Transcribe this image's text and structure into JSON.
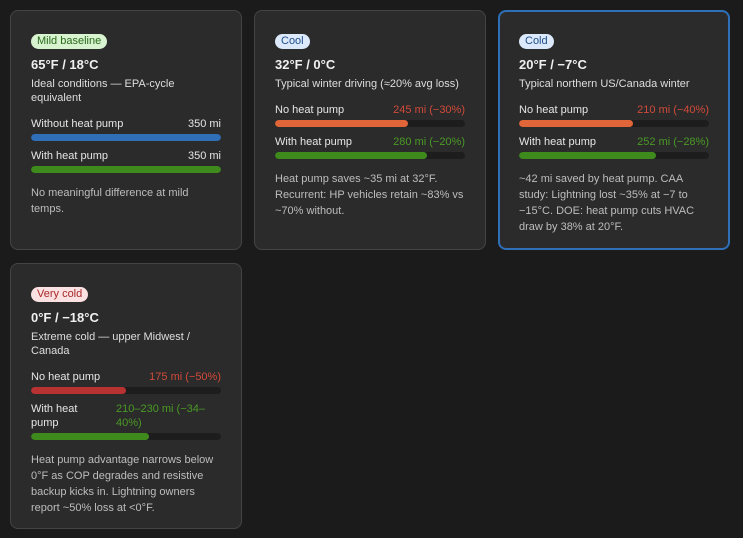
{
  "cards": [
    {
      "badge": "Mild baseline",
      "badge_bg": "#d7f3cf",
      "badge_fg": "#2a6a1b",
      "temp": "65°F / 18°C",
      "desc": "Ideal conditions — EPA-cycle equivalent",
      "rows": [
        {
          "label": "Without heat pump",
          "value": "350 mi",
          "fraction": 1.0,
          "bar_color": "#2f6fb8",
          "value_color": "#e6e6e6"
        },
        {
          "label": "With heat pump",
          "value": "350 mi",
          "fraction": 1.0,
          "bar_color": "#3f8a1c",
          "value_color": "#e6e6e6"
        }
      ],
      "note": "No meaningful difference at mild temps."
    },
    {
      "badge": "Cool",
      "badge_bg": "#dce9fb",
      "badge_fg": "#1f4f8a",
      "temp": "32°F / 0°C",
      "desc": "Typical winter driving (≈20% avg loss)",
      "rows": [
        {
          "label": "No heat pump",
          "value": "245 mi (−30%)",
          "fraction": 0.7,
          "bar_color": "#e0663a",
          "value_color": "#d14a3a"
        },
        {
          "label": "With heat pump",
          "value": "280 mi (−20%)",
          "fraction": 0.8,
          "bar_color": "#3f8a1c",
          "value_color": "#4a9a25"
        }
      ],
      "note": "Heat pump saves ~35 mi at 32°F. Recurrent: HP vehicles retain ~83% vs ~70% without."
    },
    {
      "badge": "Cold",
      "badge_bg": "#dce9fb",
      "badge_fg": "#1f4f8a",
      "temp": "20°F / −7°C",
      "desc": "Typical northern US/Canada winter",
      "rows": [
        {
          "label": "No heat pump",
          "value": "210 mi (−40%)",
          "fraction": 0.6,
          "bar_color": "#e0663a",
          "value_color": "#d14a3a"
        },
        {
          "label": "With heat pump",
          "value": "252 mi (−28%)",
          "fraction": 0.72,
          "bar_color": "#3f8a1c",
          "value_color": "#4a9a25"
        }
      ],
      "note": "~42 mi saved by heat pump. CAA study: Lightning lost ~35% at −7 to −15°C. DOE: heat pump cuts HVAC draw by 38% at 20°F."
    },
    {
      "badge": "Very cold",
      "badge_bg": "#fbe1e1",
      "badge_fg": "#a82828",
      "temp": "0°F / −18°C",
      "desc": "Extreme cold — upper Midwest / Canada",
      "rows": [
        {
          "label": "No heat pump",
          "value": "175 mi (−50%)",
          "fraction": 0.5,
          "bar_color": "#b83232",
          "value_color": "#d14a3a"
        },
        {
          "label": "With heat pump",
          "value": "210–230 mi (−34–40%)",
          "fraction": 0.62,
          "bar_color": "#3f8a1c",
          "value_color": "#4a9a25"
        }
      ],
      "note": "Heat pump advantage narrows below 0°F as COP degrades and resistive backup kicks in. Lightning owners report ~50% loss at <0°F."
    }
  ]
}
